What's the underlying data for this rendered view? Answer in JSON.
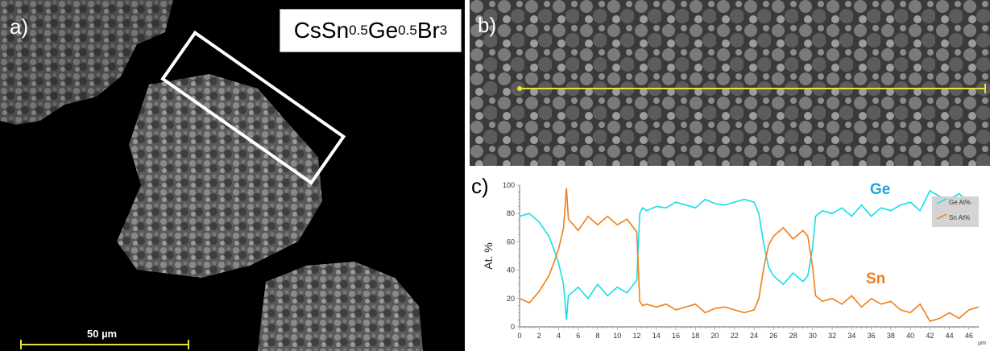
{
  "figure": {
    "panel_a_label": "a)",
    "panel_b_label": "b)",
    "panel_c_label": "c)",
    "composition": {
      "prefix": "CsSn",
      "sub1": "0.5",
      "mid": "Ge",
      "sub2": "0.5",
      "suffix": "Br",
      "sub3": "3"
    },
    "scalebar_label": "50 µm"
  },
  "chart_data": {
    "type": "line",
    "xlabel": "µm",
    "ylabel": "At. %",
    "xlim": [
      0,
      47
    ],
    "ylim": [
      0,
      100
    ],
    "xticks": [
      "0",
      "2",
      "4",
      "6",
      "8",
      "10",
      "12",
      "14",
      "16",
      "18",
      "20",
      "22",
      "24",
      "26",
      "28",
      "30",
      "32",
      "34",
      "36",
      "38",
      "40",
      "42",
      "44",
      "46"
    ],
    "yticks": [
      "0",
      "20",
      "40",
      "60",
      "80",
      "100"
    ],
    "legend": {
      "placement": "top-right",
      "entries": [
        "Ge At%",
        "Sn At%"
      ]
    },
    "annotations": [
      {
        "text": "Ge",
        "color": "#1ba7e0"
      },
      {
        "text": "Sn",
        "color": "#ef7f1a"
      }
    ],
    "series": [
      {
        "name": "Ge At%",
        "color": "#14e0e4",
        "x": [
          0,
          1,
          2,
          3,
          3.5,
          4,
          4.5,
          4.8,
          5,
          6,
          7,
          8,
          9,
          10,
          11,
          12,
          12.3,
          12.6,
          13,
          14,
          15,
          16,
          17,
          18,
          19,
          20,
          21,
          22,
          23,
          24,
          24.5,
          25,
          25.5,
          26,
          27,
          28,
          29,
          29.5,
          30,
          30.3,
          31,
          32,
          33,
          34,
          35,
          36,
          37,
          38,
          39,
          40,
          41,
          42,
          43,
          44,
          45,
          46,
          47
        ],
        "y": [
          78,
          80,
          74,
          64,
          55,
          45,
          30,
          5,
          22,
          28,
          20,
          30,
          22,
          28,
          24,
          33,
          80,
          84,
          82,
          85,
          84,
          88,
          86,
          84,
          90,
          87,
          86,
          88,
          90,
          88,
          80,
          58,
          42,
          36,
          30,
          38,
          32,
          36,
          56,
          78,
          82,
          80,
          84,
          78,
          86,
          78,
          84,
          82,
          86,
          88,
          82,
          96,
          92,
          90,
          94,
          88,
          86
        ]
      },
      {
        "name": "Sn At%",
        "color": "#ef7f1a",
        "x": [
          0,
          1,
          2,
          3,
          3.5,
          4,
          4.5,
          4.8,
          5,
          6,
          7,
          8,
          9,
          10,
          11,
          12,
          12.3,
          12.6,
          13,
          14,
          15,
          16,
          17,
          18,
          19,
          20,
          21,
          22,
          23,
          24,
          24.5,
          25,
          25.5,
          26,
          27,
          28,
          29,
          29.5,
          30,
          30.3,
          31,
          32,
          33,
          34,
          35,
          36,
          37,
          38,
          39,
          40,
          41,
          42,
          43,
          44,
          45,
          46,
          47
        ],
        "y": [
          20,
          17,
          25,
          36,
          45,
          55,
          70,
          98,
          76,
          68,
          78,
          72,
          78,
          72,
          76,
          67,
          18,
          15,
          16,
          14,
          16,
          12,
          14,
          16,
          10,
          13,
          14,
          12,
          10,
          12,
          20,
          42,
          58,
          64,
          70,
          62,
          68,
          64,
          42,
          22,
          18,
          20,
          16,
          22,
          14,
          20,
          16,
          18,
          12,
          10,
          16,
          4,
          6,
          10,
          6,
          12,
          14
        ]
      }
    ]
  }
}
